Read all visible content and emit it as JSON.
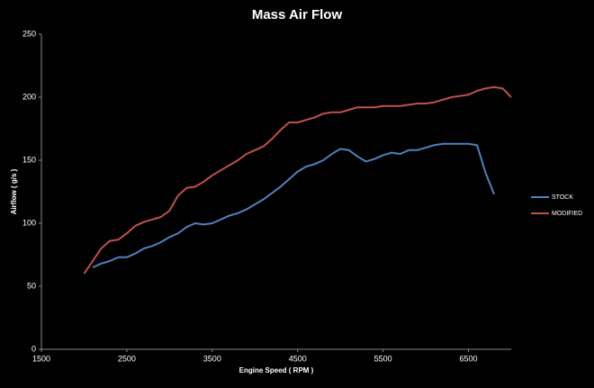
{
  "chart_data": {
    "type": "line",
    "title": "Mass Air Flow",
    "x_label": "Engine Speed ( RPM )",
    "y_label": "Airflow  ( g/s )",
    "x": [
      2000,
      2100,
      2200,
      2300,
      2400,
      2500,
      2600,
      2700,
      2800,
      2900,
      3000,
      3100,
      3200,
      3300,
      3400,
      3500,
      3600,
      3700,
      3800,
      3900,
      4000,
      4100,
      4200,
      4300,
      4400,
      4500,
      4600,
      4700,
      4800,
      4900,
      5000,
      5100,
      5200,
      5300,
      5400,
      5500,
      5600,
      5700,
      5800,
      5900,
      6000,
      6100,
      6200,
      6300,
      6400,
      6500,
      6600,
      6700,
      6800,
      6900,
      7000
    ],
    "series": [
      {
        "name": "STOCK",
        "color": "#4f81bd",
        "values": [
          null,
          65,
          68,
          70,
          73,
          73,
          76,
          80,
          82,
          85,
          89,
          92,
          97,
          100,
          99,
          100,
          103,
          106,
          108,
          111,
          115,
          119,
          124,
          129,
          135,
          141,
          145,
          147,
          150,
          155,
          159,
          158,
          153,
          149,
          151,
          154,
          156,
          155,
          158,
          158,
          160,
          162,
          163,
          163,
          163,
          163,
          162,
          140,
          123,
          null,
          null
        ]
      },
      {
        "name": "MODIFIED",
        "color": "#c0504d",
        "values": [
          60,
          70,
          80,
          86,
          87,
          92,
          98,
          101,
          103,
          105,
          110,
          122,
          128,
          129,
          133,
          138,
          142,
          146,
          150,
          155,
          158,
          161,
          167,
          174,
          180,
          180,
          182,
          184,
          187,
          188,
          188,
          190,
          192,
          192,
          192,
          193,
          193,
          193,
          194,
          195,
          195,
          196,
          198,
          200,
          201,
          202,
          205,
          207,
          208,
          207,
          200
        ]
      }
    ],
    "xlim": [
      1500,
      7000
    ],
    "xticks": [
      1500,
      2500,
      3500,
      4500,
      5500,
      6500
    ],
    "ylim": [
      0,
      250
    ],
    "yticks": [
      0,
      50,
      100,
      150,
      200,
      250
    ],
    "legend": "right"
  }
}
